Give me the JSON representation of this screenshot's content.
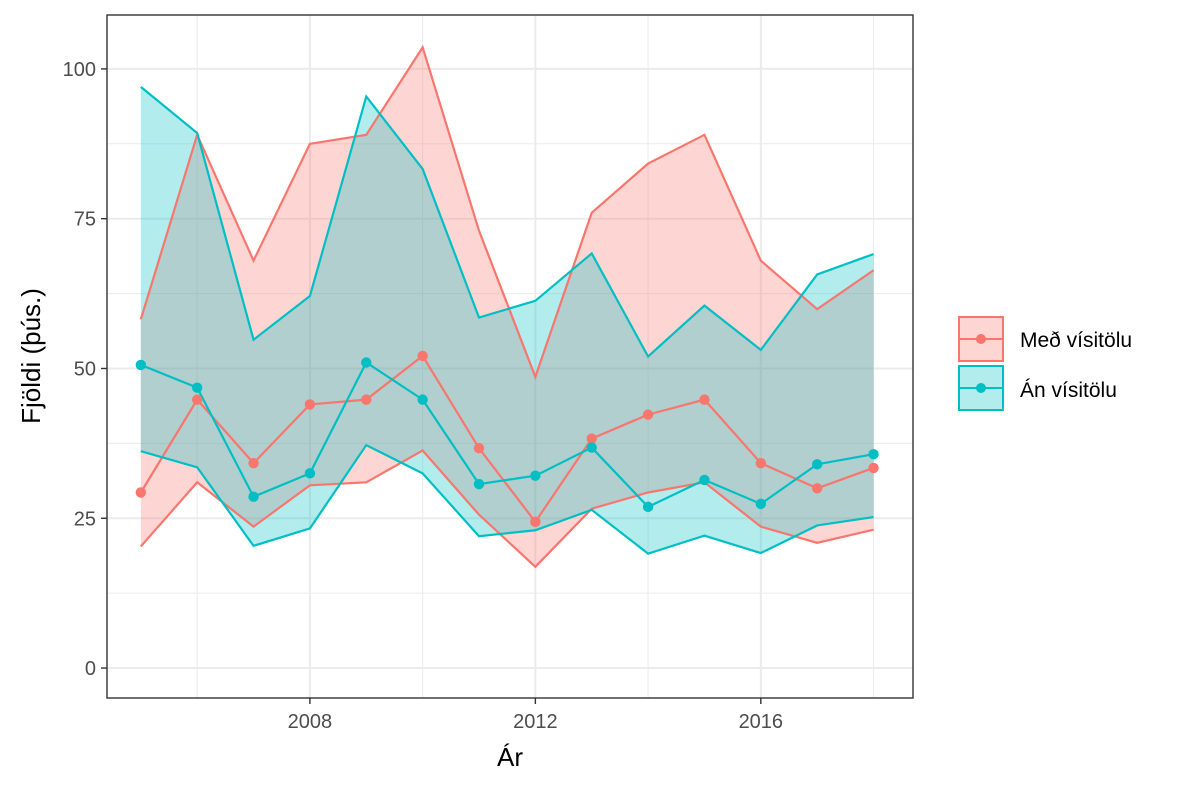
{
  "chart_data": {
    "type": "line",
    "title": "",
    "xlabel": "Ár",
    "ylabel": "Fjöldi (þús.)",
    "xlim": [
      2004.4,
      2018.7
    ],
    "ylim": [
      -5,
      109
    ],
    "x_ticks": [
      2008,
      2012,
      2016
    ],
    "x_minor_ticks": [
      2006,
      2010,
      2014,
      2018
    ],
    "y_ticks": [
      0,
      25,
      50,
      75,
      100
    ],
    "y_minor_ticks": [
      12.5,
      37.5,
      62.5,
      87.5
    ],
    "grid": true,
    "legend_position": "right",
    "x": [
      2005,
      2006,
      2007,
      2008,
      2009,
      2010,
      2011,
      2012,
      2013,
      2014,
      2015,
      2016,
      2017,
      2018
    ],
    "series": [
      {
        "name": "Með vísitölu",
        "color": "#F8766D",
        "values": [
          29.3,
          44.8,
          34.2,
          44.0,
          44.8,
          52.1,
          36.7,
          24.4,
          38.3,
          42.3,
          44.8,
          34.2,
          30.0,
          33.4
        ],
        "lower": [
          20.3,
          31.0,
          23.6,
          30.5,
          31.0,
          36.3,
          25.6,
          16.9,
          26.6,
          29.3,
          31.0,
          23.6,
          20.9,
          23.1
        ],
        "upper": [
          58.2,
          89.0,
          68.0,
          87.5,
          89.0,
          103.6,
          73.0,
          48.6,
          76.0,
          84.2,
          89.0,
          68.0,
          59.9,
          66.4
        ]
      },
      {
        "name": "Án vísitölu",
        "color": "#00BFC4",
        "values": [
          50.6,
          46.8,
          28.6,
          32.5,
          51.0,
          44.8,
          30.7,
          32.1,
          36.8,
          26.9,
          31.4,
          27.4,
          34.0,
          35.7
        ],
        "lower": [
          36.2,
          33.5,
          20.4,
          23.3,
          37.2,
          32.5,
          22.0,
          23.0,
          26.4,
          19.1,
          22.1,
          19.2,
          23.8,
          25.2
        ],
        "upper": [
          97.0,
          89.3,
          54.8,
          62.1,
          95.4,
          83.3,
          58.5,
          61.3,
          69.2,
          52.0,
          60.5,
          53.1,
          65.7,
          69.1
        ]
      }
    ]
  }
}
